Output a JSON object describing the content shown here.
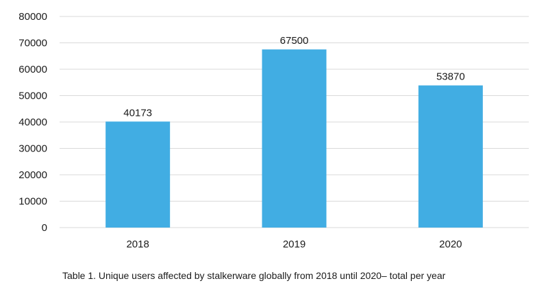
{
  "chart_data": {
    "type": "bar",
    "categories": [
      "2018",
      "2019",
      "2020"
    ],
    "values": [
      40173,
      67500,
      53870
    ],
    "data_labels": [
      "40173",
      "67500",
      "53870"
    ],
    "title": "",
    "xlabel": "",
    "ylabel": "",
    "ylim": [
      0,
      80000
    ],
    "yticks": [
      "0",
      "10000",
      "20000",
      "30000",
      "40000",
      "50000",
      "60000",
      "70000",
      "80000"
    ],
    "grid": true,
    "legend": "none",
    "bar_color": "#41ade3",
    "grid_color": "#d9d9d9"
  },
  "caption": "Table 1. Unique users affected by stalkerware globally from 2018 until 2020– total per year"
}
